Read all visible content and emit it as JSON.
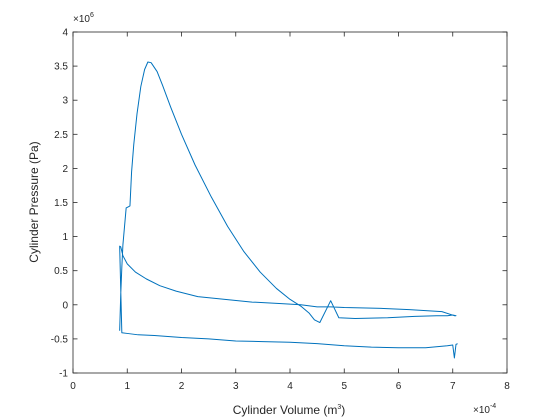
{
  "chart_data": {
    "type": "line",
    "xlabel": "Cylinder Volume (m3)",
    "xlabel_main": "Cylinder Volume (m",
    "xlabel_sup": "3",
    "xlabel_tail": ")",
    "ylabel": "Cylinder Pressure (Pa)",
    "x_exponent": {
      "base": "×10",
      "power": "-4"
    },
    "y_exponent": {
      "base": "×10",
      "power": "6"
    },
    "x_scale": 0.0001,
    "y_scale": 1000000,
    "xlim": [
      0,
      8
    ],
    "ylim": [
      -1,
      4
    ],
    "x_ticks": [
      "0",
      "1",
      "2",
      "3",
      "4",
      "5",
      "6",
      "7",
      "8"
    ],
    "y_ticks": [
      "-1",
      "-0.5",
      "0",
      "0.5",
      "1",
      "1.5",
      "2",
      "2.5",
      "3",
      "3.5",
      "4"
    ],
    "grid": false,
    "line_color": "#0072BD",
    "series": [
      {
        "x": [
          0.86,
          0.88,
          0.9,
          0.92,
          0.98,
          1.05,
          1.08,
          1.12,
          1.18,
          1.25,
          1.32,
          1.38,
          1.44,
          1.55,
          1.65,
          1.8,
          2.0,
          2.25,
          2.55,
          2.85,
          3.15,
          3.45,
          3.75,
          4.0,
          4.2,
          4.35,
          4.45,
          4.55,
          4.75,
          4.9,
          5.2,
          5.8,
          6.3,
          6.7,
          6.9,
          7.0,
          7.06,
          7.03,
          6.8,
          6.2,
          5.6,
          5.0,
          4.75,
          4.5,
          4.2,
          3.8,
          3.3,
          2.8,
          2.3,
          1.9,
          1.6,
          1.35,
          1.15,
          1.0,
          0.92,
          0.88,
          0.86,
          0.9,
          1.0,
          1.2,
          1.5,
          2.0,
          2.5,
          3.0,
          3.5,
          4.0,
          4.5,
          5.0,
          5.5,
          6.0,
          6.5,
          6.9,
          7.0,
          7.03,
          7.06,
          7.09
        ],
        "y": [
          -0.38,
          0.15,
          0.55,
          0.88,
          1.42,
          1.45,
          1.95,
          2.35,
          2.8,
          3.2,
          3.45,
          3.56,
          3.55,
          3.42,
          3.22,
          2.9,
          2.5,
          2.05,
          1.58,
          1.15,
          0.78,
          0.48,
          0.24,
          0.08,
          -0.02,
          -0.12,
          -0.22,
          -0.26,
          0.06,
          -0.19,
          -0.2,
          -0.19,
          -0.17,
          -0.16,
          -0.16,
          -0.15,
          -0.16,
          -0.16,
          -0.1,
          -0.07,
          -0.05,
          -0.04,
          -0.03,
          -0.03,
          0.0,
          0.02,
          0.04,
          0.08,
          0.12,
          0.2,
          0.28,
          0.38,
          0.48,
          0.6,
          0.72,
          0.85,
          0.86,
          -0.41,
          -0.42,
          -0.44,
          -0.45,
          -0.48,
          -0.5,
          -0.53,
          -0.54,
          -0.55,
          -0.57,
          -0.6,
          -0.62,
          -0.63,
          -0.63,
          -0.6,
          -0.59,
          -0.78,
          -0.58,
          -0.57
        ]
      }
    ]
  }
}
